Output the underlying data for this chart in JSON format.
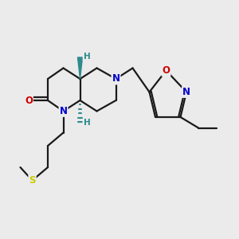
{
  "bg_color": "#ebebeb",
  "bond_color": "#1a1a1a",
  "bond_width": 1.6,
  "atom_colors": {
    "N": "#0000cc",
    "O": "#cc0000",
    "S": "#cccc00",
    "H_stereo": "#2e8b8b",
    "C": "#1a1a1a"
  },
  "font_size_atom": 8.5,
  "font_size_stereo": 7.5,
  "figsize": [
    3.0,
    3.0
  ],
  "dpi": 100,
  "xlim": [
    0,
    10
  ],
  "ylim": [
    0,
    10
  ]
}
